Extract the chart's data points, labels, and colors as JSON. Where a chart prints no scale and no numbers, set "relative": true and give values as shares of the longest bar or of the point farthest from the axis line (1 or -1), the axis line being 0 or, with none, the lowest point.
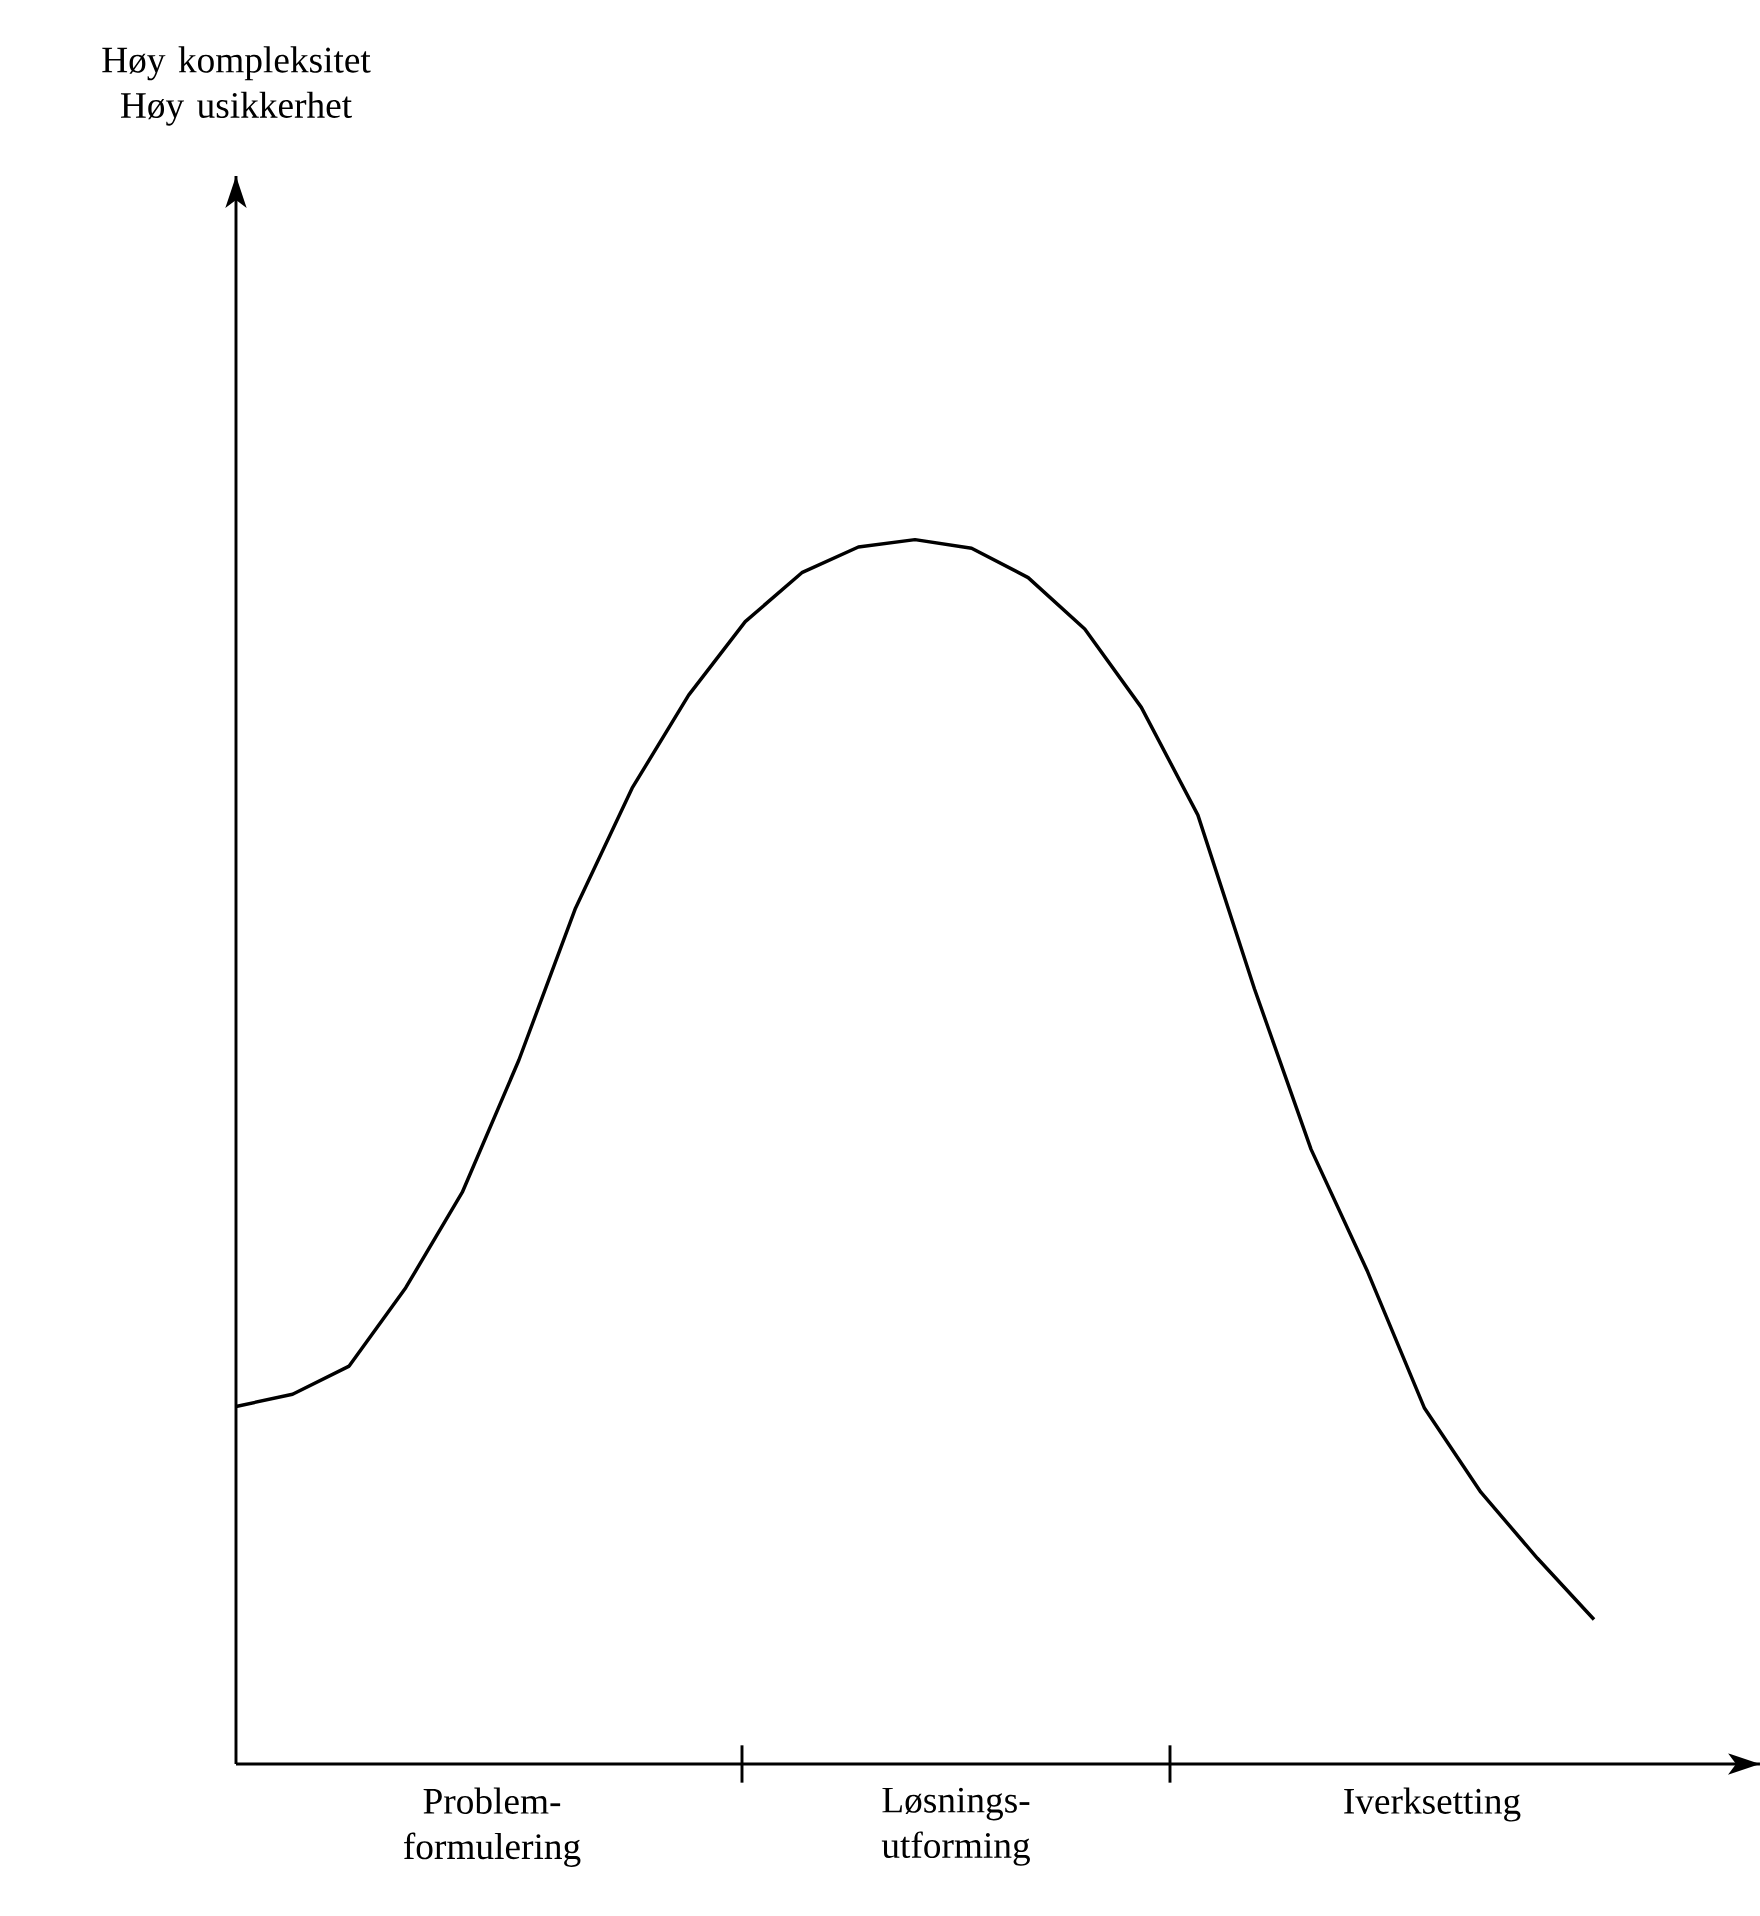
{
  "chart_data": {
    "type": "line",
    "relative": true,
    "categories": [
      null,
      null,
      null,
      null,
      null,
      null,
      null,
      null,
      null,
      null,
      null,
      null,
      null,
      null,
      null,
      null,
      null,
      null,
      null,
      null,
      null,
      null,
      null,
      null,
      null
    ],
    "series": [
      {
        "color": "#000000",
        "line_style": "solid",
        "marker": "none",
        "values": [
          0.292,
          0.302,
          0.325,
          0.389,
          0.467,
          0.575,
          0.699,
          0.797,
          0.873,
          0.933,
          0.973,
          0.994,
          1.0,
          0.993,
          0.969,
          0.927,
          0.863,
          0.775,
          0.633,
          0.502,
          0.402,
          0.291,
          0.222,
          0.168,
          0.118
        ]
      }
    ],
    "annotations": [
      "Høy kompleksitet Høy usikkerhet",
      "Problem- formulering",
      "Løsnings- utforming",
      "Iverksetting"
    ]
  }
}
